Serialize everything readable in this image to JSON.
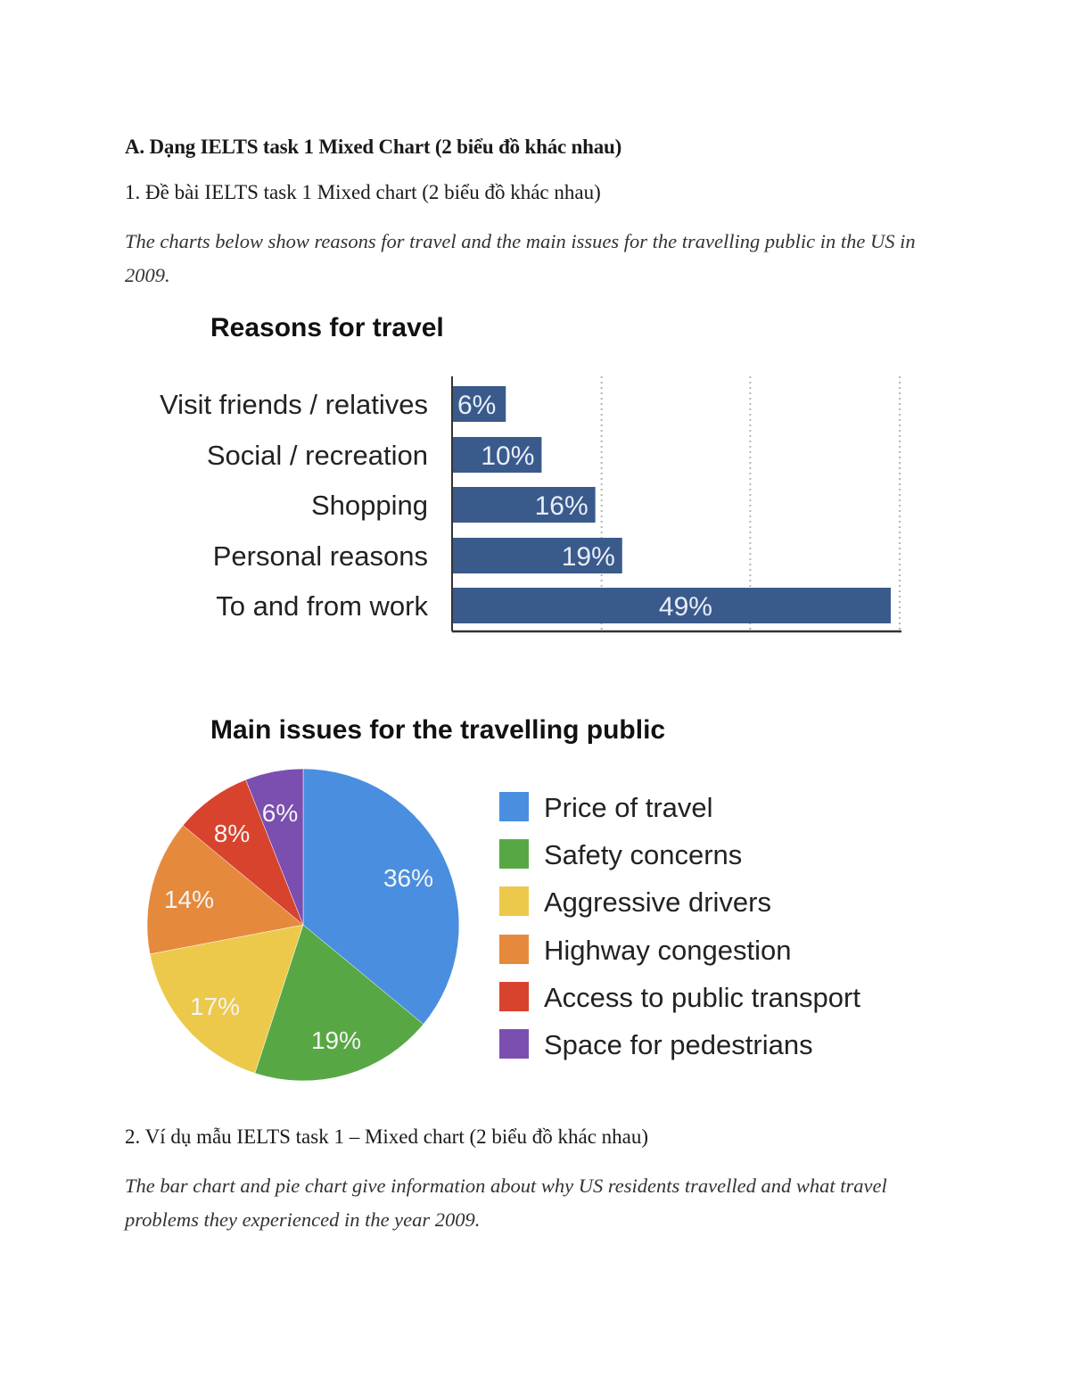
{
  "document": {
    "heading_a": "A. Dạng IELTS task 1 Mixed Chart (2 biểu đồ khác nhau)",
    "heading_1": "1. Đề bài IELTS task 1 Mixed chart (2 biểu đồ khác nhau)",
    "prompt": "The charts below show reasons for travel and the main issues for the travelling public in the US in 2009.",
    "heading_2": "2. Ví dụ mẫu IELTS task 1 – Mixed chart (2 biểu đồ khác nhau)",
    "sample_intro": "The bar chart and pie chart give information about why US residents travelled and what travel problems they experienced in the year 2009."
  },
  "chart_data": [
    {
      "type": "bar",
      "orientation": "horizontal",
      "title": "Reasons for travel",
      "categories": [
        "Visit friends / relatives",
        "Social / recreation",
        "Shopping",
        "Personal reasons",
        "To and from work"
      ],
      "values": [
        6,
        10,
        16,
        19,
        49
      ],
      "value_labels": [
        "6%",
        "10%",
        "16%",
        "19%",
        "49%"
      ],
      "unit": "%",
      "xlabel": "",
      "ylabel": "",
      "xlim": [
        0,
        50
      ],
      "grid": "vertical dotted",
      "gridlines_at": [
        16.7,
        33.3,
        50
      ],
      "tick_labels_shown": false,
      "bar_color": "#3a5a8c"
    },
    {
      "type": "pie",
      "title": "Main issues for the travelling public",
      "categories": [
        "Price of travel",
        "Safety concerns",
        "Aggressive drivers",
        "Highway congestion",
        "Access to public transport",
        "Space for pedestrians"
      ],
      "values": [
        36,
        19,
        17,
        14,
        8,
        6
      ],
      "value_labels": [
        "36%",
        "19%",
        "17%",
        "14%",
        "8%",
        "6%"
      ],
      "unit": "%",
      "colors": [
        "#4a8ee0",
        "#57a845",
        "#ecc94a",
        "#e58a3c",
        "#d8432e",
        "#7a4fb0"
      ],
      "start_angle": "12 o'clock",
      "direction": "clockwise",
      "legend_position": "right"
    }
  ]
}
